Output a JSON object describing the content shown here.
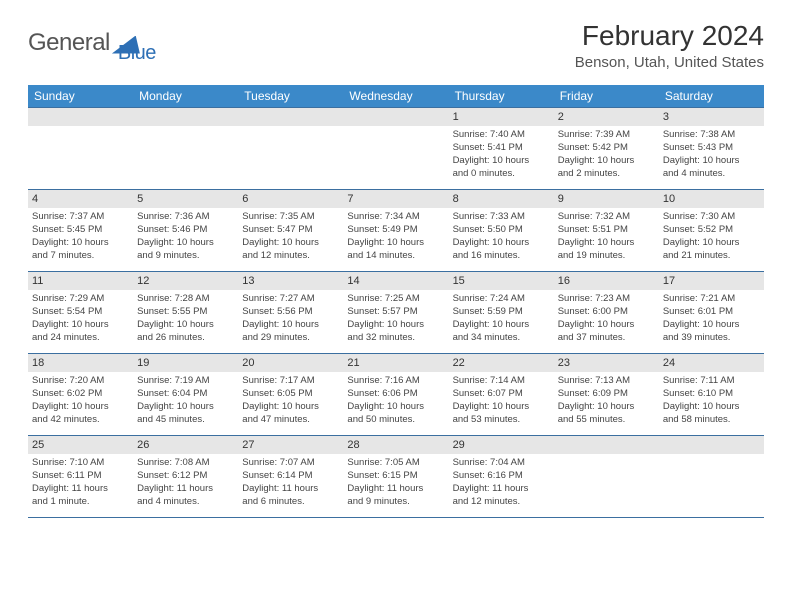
{
  "logo": {
    "text1": "General",
    "text2": "Blue"
  },
  "title": "February 2024",
  "location": "Benson, Utah, United States",
  "colors": {
    "header_bg": "#3b89c9",
    "header_fg": "#ffffff",
    "daynum_bg": "#e6e6e6",
    "rule": "#3b6fa0",
    "logo_blue": "#2d6fb5",
    "text": "#333333"
  },
  "weekdays": [
    "Sunday",
    "Monday",
    "Tuesday",
    "Wednesday",
    "Thursday",
    "Friday",
    "Saturday"
  ],
  "weeks": [
    [
      {
        "num": "",
        "lines": []
      },
      {
        "num": "",
        "lines": []
      },
      {
        "num": "",
        "lines": []
      },
      {
        "num": "",
        "lines": []
      },
      {
        "num": "1",
        "lines": [
          "Sunrise: 7:40 AM",
          "Sunset: 5:41 PM",
          "Daylight: 10 hours",
          "and 0 minutes."
        ]
      },
      {
        "num": "2",
        "lines": [
          "Sunrise: 7:39 AM",
          "Sunset: 5:42 PM",
          "Daylight: 10 hours",
          "and 2 minutes."
        ]
      },
      {
        "num": "3",
        "lines": [
          "Sunrise: 7:38 AM",
          "Sunset: 5:43 PM",
          "Daylight: 10 hours",
          "and 4 minutes."
        ]
      }
    ],
    [
      {
        "num": "4",
        "lines": [
          "Sunrise: 7:37 AM",
          "Sunset: 5:45 PM",
          "Daylight: 10 hours",
          "and 7 minutes."
        ]
      },
      {
        "num": "5",
        "lines": [
          "Sunrise: 7:36 AM",
          "Sunset: 5:46 PM",
          "Daylight: 10 hours",
          "and 9 minutes."
        ]
      },
      {
        "num": "6",
        "lines": [
          "Sunrise: 7:35 AM",
          "Sunset: 5:47 PM",
          "Daylight: 10 hours",
          "and 12 minutes."
        ]
      },
      {
        "num": "7",
        "lines": [
          "Sunrise: 7:34 AM",
          "Sunset: 5:49 PM",
          "Daylight: 10 hours",
          "and 14 minutes."
        ]
      },
      {
        "num": "8",
        "lines": [
          "Sunrise: 7:33 AM",
          "Sunset: 5:50 PM",
          "Daylight: 10 hours",
          "and 16 minutes."
        ]
      },
      {
        "num": "9",
        "lines": [
          "Sunrise: 7:32 AM",
          "Sunset: 5:51 PM",
          "Daylight: 10 hours",
          "and 19 minutes."
        ]
      },
      {
        "num": "10",
        "lines": [
          "Sunrise: 7:30 AM",
          "Sunset: 5:52 PM",
          "Daylight: 10 hours",
          "and 21 minutes."
        ]
      }
    ],
    [
      {
        "num": "11",
        "lines": [
          "Sunrise: 7:29 AM",
          "Sunset: 5:54 PM",
          "Daylight: 10 hours",
          "and 24 minutes."
        ]
      },
      {
        "num": "12",
        "lines": [
          "Sunrise: 7:28 AM",
          "Sunset: 5:55 PM",
          "Daylight: 10 hours",
          "and 26 minutes."
        ]
      },
      {
        "num": "13",
        "lines": [
          "Sunrise: 7:27 AM",
          "Sunset: 5:56 PM",
          "Daylight: 10 hours",
          "and 29 minutes."
        ]
      },
      {
        "num": "14",
        "lines": [
          "Sunrise: 7:25 AM",
          "Sunset: 5:57 PM",
          "Daylight: 10 hours",
          "and 32 minutes."
        ]
      },
      {
        "num": "15",
        "lines": [
          "Sunrise: 7:24 AM",
          "Sunset: 5:59 PM",
          "Daylight: 10 hours",
          "and 34 minutes."
        ]
      },
      {
        "num": "16",
        "lines": [
          "Sunrise: 7:23 AM",
          "Sunset: 6:00 PM",
          "Daylight: 10 hours",
          "and 37 minutes."
        ]
      },
      {
        "num": "17",
        "lines": [
          "Sunrise: 7:21 AM",
          "Sunset: 6:01 PM",
          "Daylight: 10 hours",
          "and 39 minutes."
        ]
      }
    ],
    [
      {
        "num": "18",
        "lines": [
          "Sunrise: 7:20 AM",
          "Sunset: 6:02 PM",
          "Daylight: 10 hours",
          "and 42 minutes."
        ]
      },
      {
        "num": "19",
        "lines": [
          "Sunrise: 7:19 AM",
          "Sunset: 6:04 PM",
          "Daylight: 10 hours",
          "and 45 minutes."
        ]
      },
      {
        "num": "20",
        "lines": [
          "Sunrise: 7:17 AM",
          "Sunset: 6:05 PM",
          "Daylight: 10 hours",
          "and 47 minutes."
        ]
      },
      {
        "num": "21",
        "lines": [
          "Sunrise: 7:16 AM",
          "Sunset: 6:06 PM",
          "Daylight: 10 hours",
          "and 50 minutes."
        ]
      },
      {
        "num": "22",
        "lines": [
          "Sunrise: 7:14 AM",
          "Sunset: 6:07 PM",
          "Daylight: 10 hours",
          "and 53 minutes."
        ]
      },
      {
        "num": "23",
        "lines": [
          "Sunrise: 7:13 AM",
          "Sunset: 6:09 PM",
          "Daylight: 10 hours",
          "and 55 minutes."
        ]
      },
      {
        "num": "24",
        "lines": [
          "Sunrise: 7:11 AM",
          "Sunset: 6:10 PM",
          "Daylight: 10 hours",
          "and 58 minutes."
        ]
      }
    ],
    [
      {
        "num": "25",
        "lines": [
          "Sunrise: 7:10 AM",
          "Sunset: 6:11 PM",
          "Daylight: 11 hours",
          "and 1 minute."
        ]
      },
      {
        "num": "26",
        "lines": [
          "Sunrise: 7:08 AM",
          "Sunset: 6:12 PM",
          "Daylight: 11 hours",
          "and 4 minutes."
        ]
      },
      {
        "num": "27",
        "lines": [
          "Sunrise: 7:07 AM",
          "Sunset: 6:14 PM",
          "Daylight: 11 hours",
          "and 6 minutes."
        ]
      },
      {
        "num": "28",
        "lines": [
          "Sunrise: 7:05 AM",
          "Sunset: 6:15 PM",
          "Daylight: 11 hours",
          "and 9 minutes."
        ]
      },
      {
        "num": "29",
        "lines": [
          "Sunrise: 7:04 AM",
          "Sunset: 6:16 PM",
          "Daylight: 11 hours",
          "and 12 minutes."
        ]
      },
      {
        "num": "",
        "lines": []
      },
      {
        "num": "",
        "lines": []
      }
    ]
  ]
}
